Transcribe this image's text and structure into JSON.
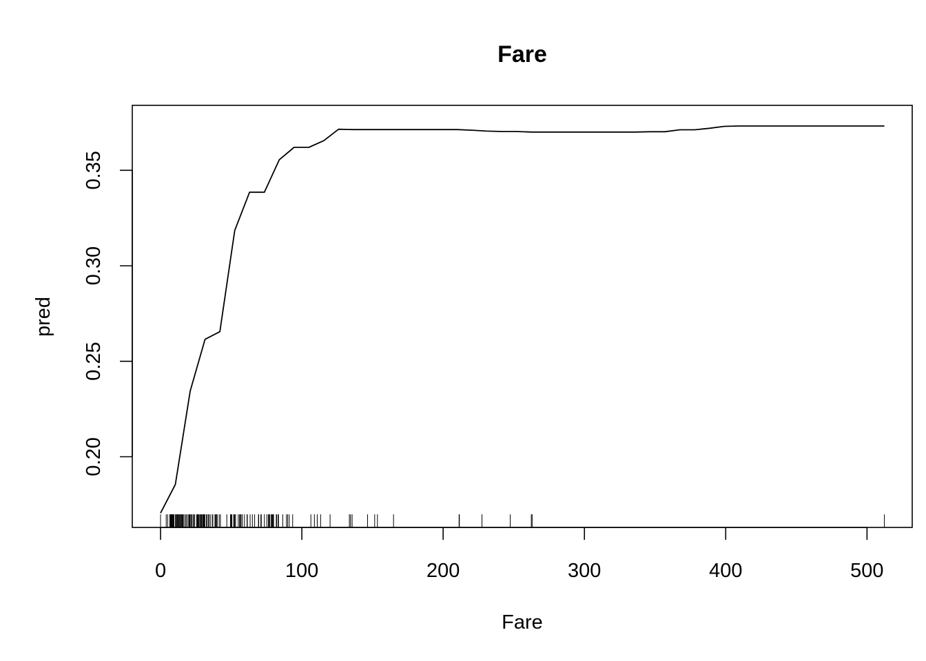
{
  "chart_data": {
    "type": "line",
    "title": "Fare",
    "xlabel": "Fare",
    "ylabel": "pred",
    "xlim": [
      -20,
      532
    ],
    "ylim": [
      0.163,
      0.384
    ],
    "x_ticks": [
      0,
      100,
      200,
      300,
      400,
      500
    ],
    "x_tick_labels": [
      "0",
      "100",
      "200",
      "300",
      "400",
      "500"
    ],
    "y_ticks": [
      0.2,
      0.25,
      0.3,
      0.35
    ],
    "y_tick_labels": [
      "0.20",
      "0.25",
      "0.30",
      "0.35"
    ],
    "series": [
      {
        "x": [
          0,
          10.5,
          21,
          31.5,
          42,
          52.5,
          63,
          73.5,
          84,
          94.5,
          105,
          115.5,
          126,
          136.5,
          147,
          157.5,
          168,
          178.5,
          189,
          199.5,
          210,
          220.5,
          231,
          241.5,
          252,
          262.5,
          273,
          283.5,
          294,
          304.5,
          315,
          325.5,
          336,
          346.5,
          357,
          367.5,
          378,
          388.5,
          399,
          409.5,
          420,
          430.5,
          441,
          451.5,
          462,
          472.5,
          483,
          493.5,
          504,
          512.3
        ],
        "y": [
          0.1705,
          0.1855,
          0.2345,
          0.2615,
          0.2655,
          0.3185,
          0.3385,
          0.3385,
          0.3555,
          0.362,
          0.362,
          0.3655,
          0.3715,
          0.3713,
          0.3713,
          0.3713,
          0.3713,
          0.3713,
          0.3713,
          0.3713,
          0.3713,
          0.371,
          0.3705,
          0.3703,
          0.3703,
          0.37,
          0.37,
          0.37,
          0.37,
          0.37,
          0.37,
          0.37,
          0.37,
          0.3702,
          0.3702,
          0.3712,
          0.3712,
          0.372,
          0.373,
          0.3732,
          0.3732,
          0.3732,
          0.3732,
          0.3732,
          0.3732,
          0.3732,
          0.3732,
          0.3732,
          0.3732,
          0.3732
        ]
      }
    ],
    "rug": [
      0,
      4,
      5,
      6.5,
      7,
      7.25,
      7.5,
      7.75,
      7.9,
      8.05,
      8.5,
      9,
      9.5,
      10.5,
      11.1,
      11.5,
      12,
      12.5,
      13,
      13.5,
      14,
      14.5,
      15,
      15.25,
      15.5,
      16,
      16.7,
      17.8,
      18.5,
      19.5,
      20.2,
      20.5,
      21,
      21.7,
      22,
      23,
      23.25,
      24,
      24.15,
      25.5,
      26,
      26.25,
      26.55,
      27,
      27.7,
      27.9,
      28.5,
      29,
      29.7,
      30,
      30.5,
      31,
      31.4,
      32.5,
      33,
      34,
      34.4,
      35.5,
      36.75,
      37,
      38.5,
      39,
      39.6,
      40.1,
      41.5,
      42.4,
      46.9,
      49.5,
      50,
      50.5,
      51.8,
      52,
      52.5,
      53.1,
      55,
      55.9,
      56.5,
      57,
      57.9,
      59.4,
      61.2,
      61.4,
      63.4,
      65,
      66.6,
      69.3,
      69.5,
      71,
      71.3,
      73.5,
      75.25,
      76.3,
      76.7,
      77.3,
      78.3,
      78.85,
      79.2,
      79.65,
      80,
      81.9,
      82.2,
      83.2,
      83.5,
      86.5,
      89.1,
      90,
      91.1,
      93.5,
      106.4,
      108.9,
      110.9,
      113.3,
      120,
      133.65,
      134.5,
      135.6,
      146.5,
      151.55,
      153.5,
      164.9,
      211.3,
      211.5,
      227.5,
      247.5,
      262.4,
      263,
      512.3
    ]
  }
}
